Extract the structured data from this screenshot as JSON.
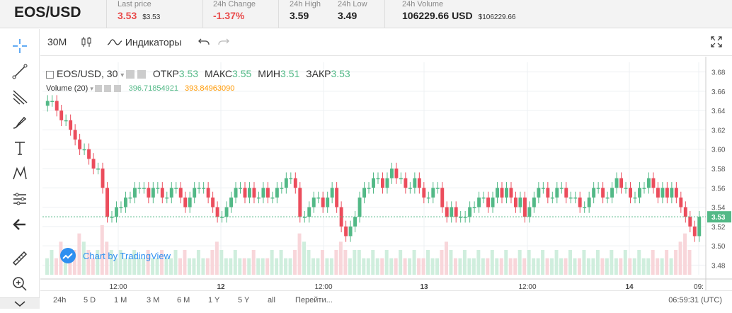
{
  "header": {
    "pair": "EOS/USD",
    "stats": [
      {
        "label": "Last price",
        "value": "3.53",
        "sub": "$3.53",
        "tone": "red"
      },
      {
        "label": "24h Change",
        "value": "-1.37%",
        "sub": "",
        "tone": "red"
      },
      {
        "label": "24h High",
        "value": "3.59",
        "sub": "",
        "tone": "dark"
      },
      {
        "label": "24h Low",
        "value": "3.49",
        "sub": "",
        "tone": "dark"
      },
      {
        "label": "24h Volume",
        "value": "106229.66 USD",
        "sub": "$106229.66",
        "tone": "dark"
      }
    ]
  },
  "toolbar": {
    "interval": "30M",
    "indicators": "Индикаторы"
  },
  "legend": {
    "symbol": "EOS/USD, 30",
    "open_label": "ОТКР",
    "open": "3.53",
    "high_label": "МАКС",
    "high": "3.55",
    "low_label": "МИН",
    "low": "3.51",
    "close_label": "ЗАКР",
    "close": "3.53",
    "volume_label": "Volume (20)",
    "volume_value": "396.71854921",
    "volume_ma": "393.84963090"
  },
  "credit": "Chart by TradingView",
  "colors": {
    "up": "#53b987",
    "down": "#eb4d5c",
    "accent": "#2e8ff0"
  },
  "chart_data": {
    "type": "candlestick",
    "y_ticks": [
      "3.68",
      "3.66",
      "3.64",
      "3.62",
      "3.60",
      "3.58",
      "3.56",
      "3.54",
      "3.52",
      "3.50",
      "3.48"
    ],
    "ylim": [
      3.47,
      3.69
    ],
    "last_price_label": "3.53",
    "x_ticks": [
      "12:00",
      "12",
      "12:00",
      "13",
      "12:00",
      "14",
      "09:"
    ],
    "closes": [
      3.65,
      3.65,
      3.64,
      3.63,
      3.63,
      3.62,
      3.61,
      3.6,
      3.6,
      3.59,
      3.58,
      3.58,
      3.56,
      3.53,
      3.53,
      3.54,
      3.54,
      3.55,
      3.55,
      3.56,
      3.56,
      3.56,
      3.55,
      3.56,
      3.56,
      3.55,
      3.55,
      3.56,
      3.56,
      3.55,
      3.54,
      3.55,
      3.56,
      3.56,
      3.56,
      3.55,
      3.54,
      3.53,
      3.53,
      3.54,
      3.55,
      3.56,
      3.56,
      3.55,
      3.56,
      3.55,
      3.55,
      3.56,
      3.55,
      3.55,
      3.56,
      3.56,
      3.57,
      3.57,
      3.56,
      3.53,
      3.53,
      3.54,
      3.55,
      3.55,
      3.54,
      3.55,
      3.56,
      3.54,
      3.52,
      3.51,
      3.52,
      3.53,
      3.55,
      3.56,
      3.56,
      3.57,
      3.57,
      3.56,
      3.57,
      3.58,
      3.57,
      3.57,
      3.56,
      3.56,
      3.57,
      3.56,
      3.55,
      3.55,
      3.56,
      3.56,
      3.54,
      3.53,
      3.54,
      3.53,
      3.53,
      3.53,
      3.54,
      3.54,
      3.55,
      3.55,
      3.54,
      3.55,
      3.56,
      3.55,
      3.56,
      3.55,
      3.54,
      3.55,
      3.53,
      3.54,
      3.55,
      3.56,
      3.56,
      3.55,
      3.55,
      3.56,
      3.56,
      3.55,
      3.55,
      3.55,
      3.54,
      3.54,
      3.55,
      3.56,
      3.56,
      3.55,
      3.55,
      3.56,
      3.57,
      3.56,
      3.56,
      3.55,
      3.55,
      3.56,
      3.56,
      3.57,
      3.56,
      3.55,
      3.56,
      3.55,
      3.56,
      3.55,
      3.54,
      3.53,
      3.52,
      3.51,
      3.53
    ],
    "volumes": [
      2,
      3,
      2,
      4,
      3,
      2,
      3,
      5,
      4,
      3,
      2,
      3,
      6,
      4,
      3,
      2,
      3,
      2,
      2,
      3,
      2,
      2,
      3,
      2,
      2,
      3,
      2,
      2,
      3,
      2,
      3,
      2,
      2,
      3,
      2,
      2,
      3,
      4,
      3,
      2,
      2,
      3,
      2,
      2,
      2,
      3,
      2,
      2,
      2,
      3,
      2,
      3,
      2,
      2,
      3,
      5,
      4,
      3,
      2,
      2,
      3,
      2,
      2,
      3,
      4,
      3,
      2,
      3,
      3,
      2,
      2,
      3,
      2,
      2,
      3,
      2,
      2,
      3,
      2,
      2,
      3,
      2,
      2,
      3,
      2,
      2,
      3,
      4,
      3,
      2,
      2,
      3,
      2,
      2,
      3,
      2,
      2,
      3,
      2,
      2,
      3,
      2,
      2,
      3,
      2,
      3,
      2,
      2,
      3,
      2,
      2,
      3,
      2,
      2,
      3,
      2,
      2,
      3,
      2,
      2,
      3,
      2,
      2,
      3,
      2,
      2,
      3,
      2,
      2,
      3,
      2,
      2,
      3,
      2,
      2,
      3,
      2,
      3,
      4,
      5,
      3
    ]
  },
  "timeframes": [
    "24h",
    "5 D",
    "1 M",
    "3 M",
    "6 M",
    "1 Y",
    "5 Y",
    "all",
    "Перейти..."
  ],
  "time_readout": "06:59:31 (UTC)"
}
